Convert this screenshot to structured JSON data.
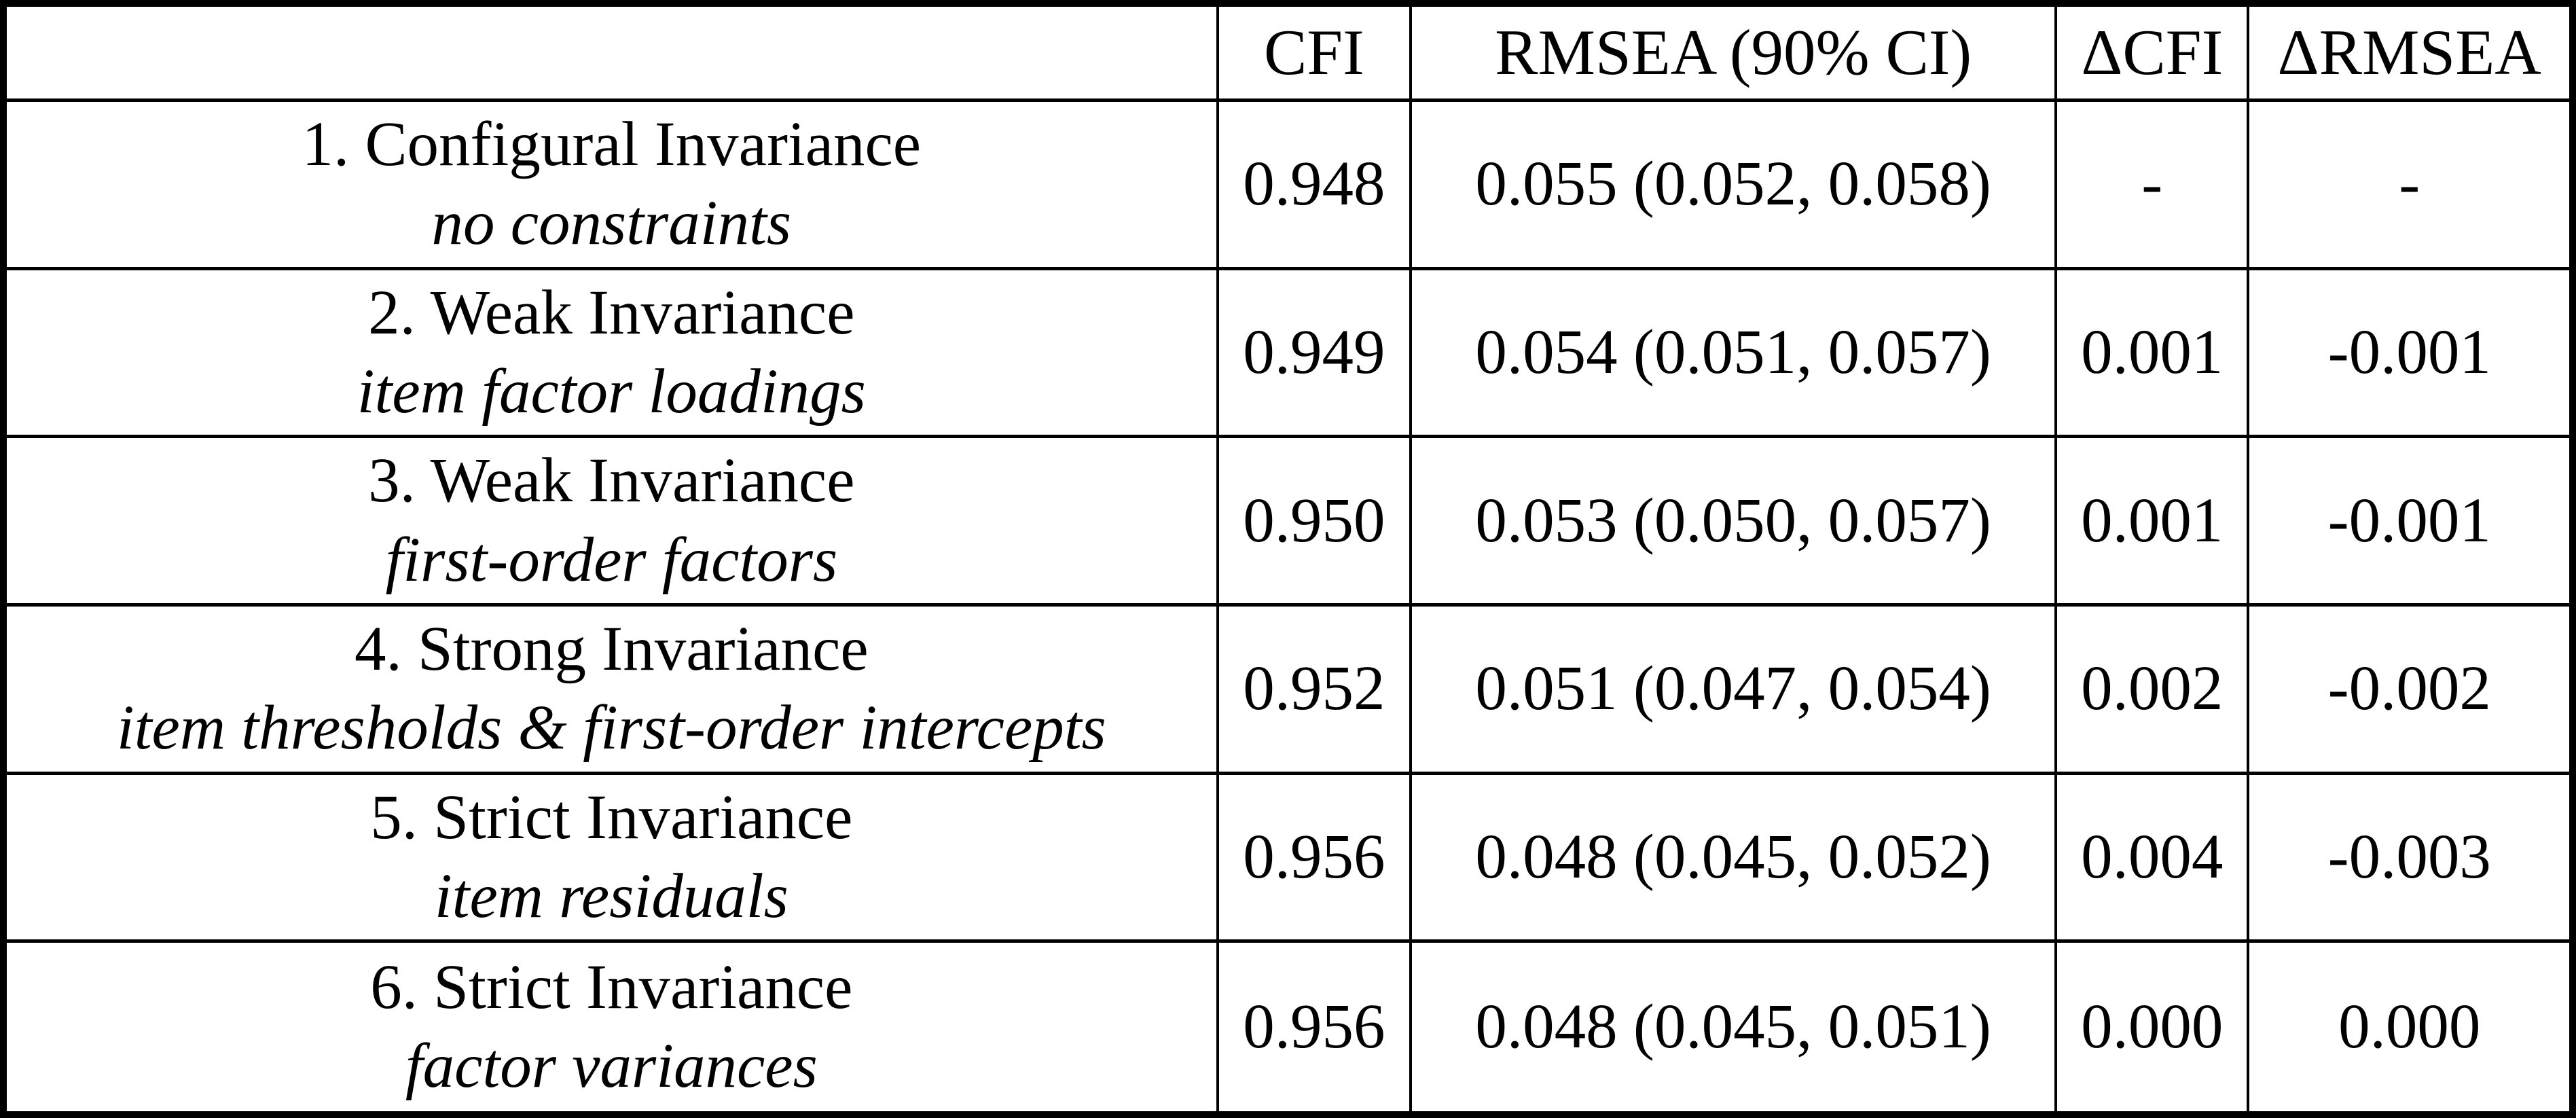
{
  "table": {
    "columns": {
      "model": "",
      "cfi": "CFI",
      "rmsea": "RMSEA (90% CI)",
      "dcfi": "ΔCFI",
      "drmsea": "ΔRMSEA"
    },
    "rows": [
      {
        "model": "1. Configural Invariance",
        "constraints": "no constraints",
        "cfi": "0.948",
        "rmsea": "0.055 (0.052, 0.058)",
        "dcfi": "-",
        "drmsea": "-"
      },
      {
        "model": "2. Weak Invariance",
        "constraints": "item factor loadings",
        "cfi": "0.949",
        "rmsea": "0.054 (0.051, 0.057)",
        "dcfi": "0.001",
        "drmsea": "-0.001"
      },
      {
        "model": "3. Weak Invariance",
        "constraints": "first-order factors",
        "cfi": "0.950",
        "rmsea": "0.053 (0.050, 0.057)",
        "dcfi": "0.001",
        "drmsea": "-0.001"
      },
      {
        "model": "4. Strong Invariance",
        "constraints": "item thresholds & first-order intercepts",
        "cfi": "0.952",
        "rmsea": "0.051 (0.047, 0.054)",
        "dcfi": "0.002",
        "drmsea": "-0.002"
      },
      {
        "model": "5. Strict Invariance",
        "constraints": "item residuals",
        "cfi": "0.956",
        "rmsea": "0.048 (0.045, 0.052)",
        "dcfi": "0.004",
        "drmsea": "-0.003"
      },
      {
        "model": "6. Strict Invariance",
        "constraints": "factor variances",
        "cfi": "0.956",
        "rmsea": "0.048 (0.045, 0.051)",
        "dcfi": "0.000",
        "drmsea": "0.000"
      }
    ]
  }
}
